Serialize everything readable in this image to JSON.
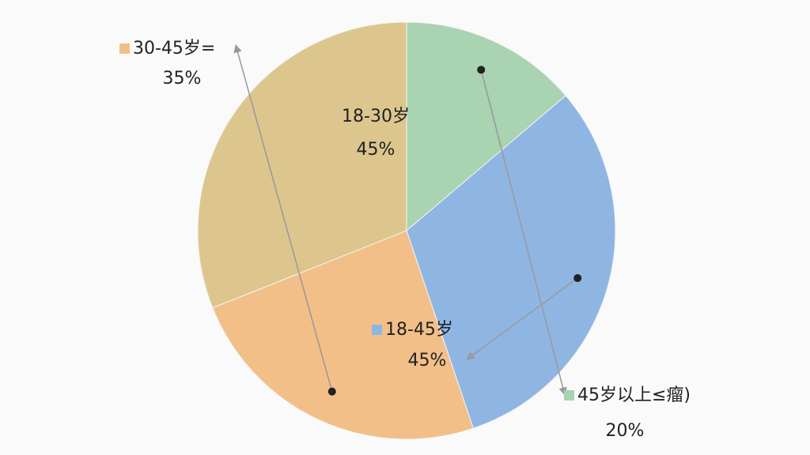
{
  "chart_data": {
    "type": "pie",
    "categories": [
      "45岁以上≤瘤)",
      "18-45岁",
      "30-45岁=",
      "18-30岁"
    ],
    "values": [
      20,
      45,
      35,
      45
    ],
    "value_labels": [
      "20%",
      "45%",
      "35%",
      "45%"
    ],
    "colors": [
      "#a9d3b1",
      "#8fb6e3",
      "#f2bf88",
      "#dcc68e"
    ]
  }
}
